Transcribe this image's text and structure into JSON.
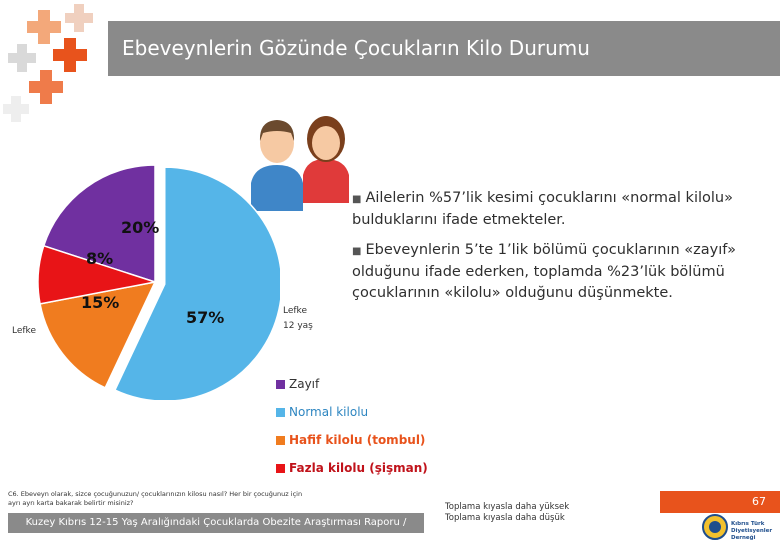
{
  "slide": {
    "title": "Ebeveynlerin Gözünde Çocukların Kilo Durumu",
    "page_number": "67"
  },
  "chart_data": {
    "type": "pie",
    "labels": [
      "Zayıf",
      "Normal kilolu",
      "Hafif kilolu (tombul)",
      "Fazla kilolu (şişman)"
    ],
    "values": [
      20,
      57,
      15,
      8
    ],
    "value_labels": [
      "20%",
      "57%",
      "15%",
      "8%"
    ],
    "colors": [
      "#7030a0",
      "#55b5e8",
      "#f07c1f",
      "#e81417"
    ],
    "legend_position": "bottom"
  },
  "chart_labels": {
    "left": "Lefke",
    "right_line1": "Lefke",
    "right_line2": "12 yaş"
  },
  "bullets": [
    "Ailelerin %57’lik kesimi çocuklarını «normal kilolu» bulduklarını ifade etmekteler.",
    "Ebeveynlerin 5’te 1’lik bölümü çocuklarının «zayıf» olduğunu ifade ederken, toplamda %23’lük bölümü çocuklarının «kilolu» olduğunu düşünmekte."
  ],
  "footnote": {
    "line1": "C6. Ebeveyn olarak, sizce çocuğunuzun/ çocuklarınızın kilosu nasıl? Her bir çocuğunuz için",
    "line2": "ayrı ayrı karta bakarak belirtir misiniz?"
  },
  "footer": "Kuzey Kıbrıs 12-15 Yaş Aralığındaki Çocuklarda Obezite Araştırması Raporu / Temmuz 2013",
  "comparison": {
    "higher": "Toplama kıyasla daha yüksek",
    "lower": "Toplama kıyasla daha düşük"
  },
  "logo": {
    "line1": "Kıbrıs Türk",
    "line2": "Diyetisyenler Derneği"
  },
  "icons": {
    "decor": "plus-cross-pattern",
    "people": "parents-icon"
  }
}
